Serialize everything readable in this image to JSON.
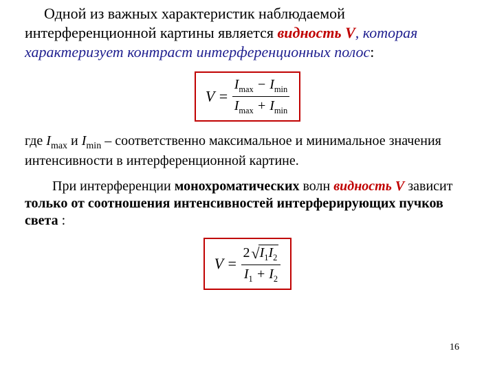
{
  "p1": {
    "t1": "Одной из важных характеристик наблюдаемой интерференционной картины является ",
    "t2": "видность V",
    "t3": ", которая характеризует контраст интерференционных полос",
    "t4": ":"
  },
  "formula1": {
    "lhs": "V = ",
    "num_a": "I",
    "num_a_sub": "max",
    "num_op": " − ",
    "num_b": "I",
    "num_b_sub": "min",
    "den_a": "I",
    "den_a_sub": "max",
    "den_op": " + ",
    "den_b": "I",
    "den_b_sub": "min",
    "border_color": "#c00000"
  },
  "p2": {
    "t1": "где ",
    "imax_i": "I",
    "imax_sub": "max",
    "t2": " и ",
    "imin_i": "I",
    "imin_sub": "min",
    "t3": " – соответственно максимальное и минимальное значения интенсивности в интерференционной картине."
  },
  "p3": {
    "t1": "При интерференции ",
    "t2": "монохроматических",
    "t3": " волн ",
    "t4": "видность V",
    "t5": " зависит ",
    "t6": "только от соотношения интенсивностей интерферирующих пучков света",
    "t7": " :"
  },
  "formula2": {
    "lhs": "V = ",
    "num_coef": "2",
    "num_rad_a": "I",
    "num_rad_a_sub": "1",
    "num_rad_b": "I",
    "num_rad_b_sub": "2",
    "den_a": "I",
    "den_a_sub": "1",
    "den_op": " + ",
    "den_b": "I",
    "den_b_sub": "2",
    "border_color": "#c00000"
  },
  "pageNumber": "16",
  "colors": {
    "emphasis_navy": "#1f1f8f",
    "emphasis_red": "#c00000",
    "text": "#000000",
    "background": "#ffffff"
  },
  "typography": {
    "body_fontsize_pt": 16,
    "secondary_fontsize_pt": 15,
    "font_family": "Times New Roman"
  }
}
